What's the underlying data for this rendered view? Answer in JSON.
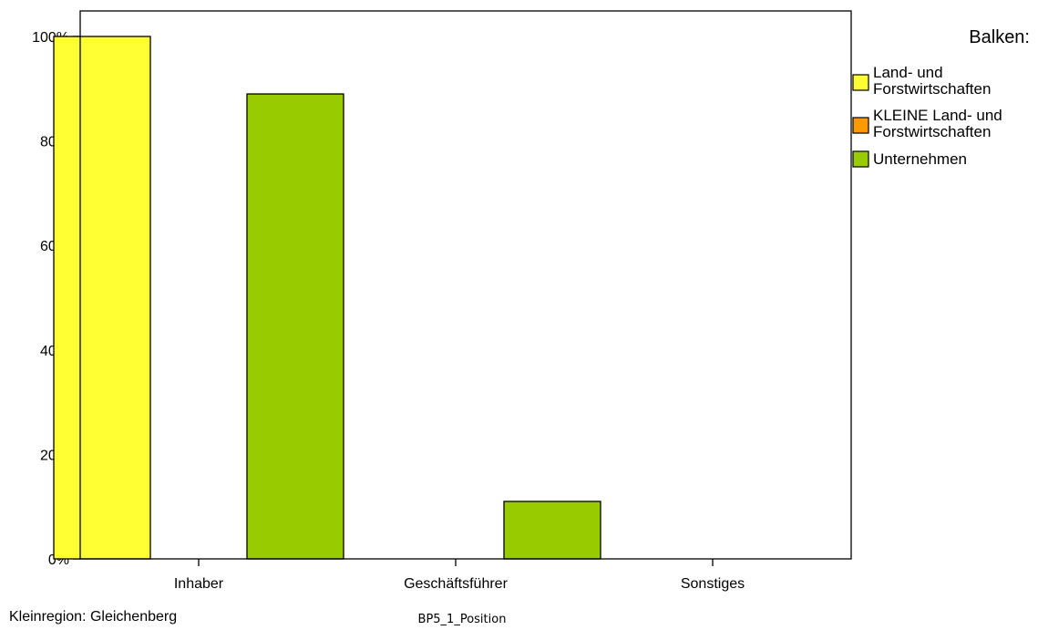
{
  "chart_data": {
    "type": "bar",
    "categories": [
      "Inhaber",
      "Geschäftsführer",
      "Sonstiges"
    ],
    "series": [
      {
        "name": "Land- und Forstwirtschaften",
        "color": "#ffff33",
        "values": [
          100,
          0,
          0
        ]
      },
      {
        "name": "KLEINE Land- und Forstwirtschaften",
        "color": "#ff9900",
        "values": [
          0,
          0,
          0
        ]
      },
      {
        "name": "Unternehmen",
        "color": "#99cc00",
        "values": [
          89,
          11,
          0
        ]
      }
    ],
    "xlabel": "BP5_1_Position",
    "ylabel": "",
    "ylim": [
      0,
      100
    ],
    "yticks": [
      "0%",
      "20%",
      "40%",
      "60%",
      "80%",
      "100%"
    ],
    "legend_title": "Balken:",
    "legend_labels": [
      [
        "Land- und",
        "Forstwirtschaften"
      ],
      [
        "KLEINE Land- und",
        "Forstwirtschaften"
      ],
      [
        "Unternehmen"
      ]
    ],
    "legend_position": "right",
    "grid": false,
    "footnote": "Kleinregion: Gleichenberg"
  }
}
